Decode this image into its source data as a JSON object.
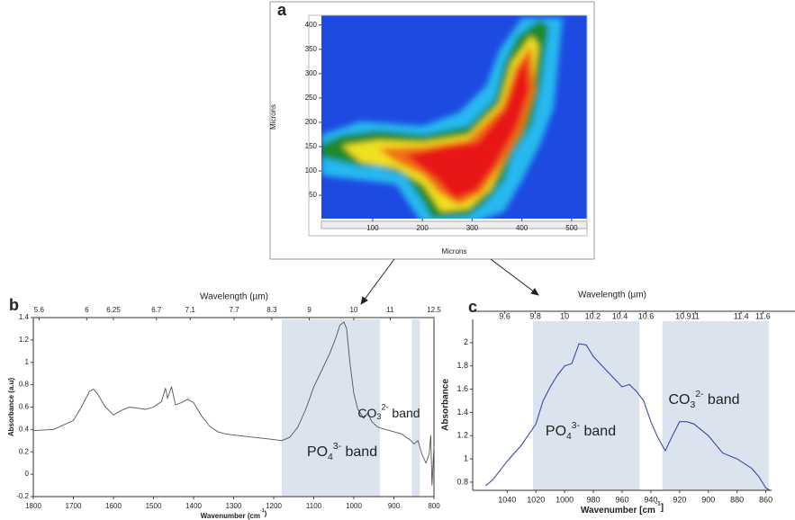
{
  "chart_data": [
    {
      "type": "heatmap",
      "panel_label": "a",
      "xlabel": "Microns",
      "ylabel": "Microns",
      "xlim": [
        -3,
        531
      ],
      "ylim": [
        2,
        420
      ],
      "xticks": [
        100,
        200,
        300,
        400,
        500
      ],
      "yticks": [
        50,
        100,
        150,
        200,
        250,
        300,
        350,
        400
      ]
    },
    {
      "type": "line",
      "panel_label": "b",
      "color": "#555555",
      "xlabel": {
        "text": "Wavenumber (cm",
        "sup": "-1",
        "rest": ")"
      },
      "ylabel": "Absorbance (a.u)",
      "x2label": "Wavelength (µm)",
      "xlim": [
        1800,
        800
      ],
      "ylim": [
        -0.2,
        1.4
      ],
      "xticks": [
        1800,
        1700,
        1600,
        1500,
        1400,
        1300,
        1200,
        1100,
        1000,
        900,
        800
      ],
      "yticks": [
        -0.2,
        0,
        0.2,
        0.4,
        0.6,
        0.8,
        1,
        1.2,
        1.4
      ],
      "x2ticks": [
        5.6,
        6,
        6.25,
        6.7,
        7.1,
        7.7,
        8.3,
        9,
        10,
        11,
        12.5
      ],
      "bands": [
        {
          "xlim": [
            1180,
            935
          ],
          "label": {
            "text": "PO",
            "sub": "4",
            "sup": "3-",
            "rest": " band"
          }
        },
        {
          "xlim": [
            855,
            835
          ],
          "label": {
            "text": "CO",
            "sub": "3",
            "sup": "2-",
            "rest": " band"
          }
        }
      ],
      "x": [
        1800,
        1750,
        1700,
        1680,
        1660,
        1650,
        1640,
        1620,
        1600,
        1580,
        1560,
        1540,
        1520,
        1500,
        1480,
        1470,
        1465,
        1455,
        1445,
        1430,
        1415,
        1400,
        1380,
        1360,
        1340,
        1320,
        1300,
        1250,
        1200,
        1180,
        1160,
        1140,
        1120,
        1100,
        1080,
        1060,
        1045,
        1035,
        1025,
        1018,
        1010,
        1000,
        990,
        975,
        965,
        955,
        940,
        920,
        900,
        880,
        870,
        860,
        850,
        840,
        830,
        820,
        812,
        808,
        805,
        800
      ],
      "values": [
        0.39,
        0.4,
        0.48,
        0.6,
        0.74,
        0.76,
        0.72,
        0.6,
        0.53,
        0.57,
        0.6,
        0.59,
        0.58,
        0.6,
        0.65,
        0.77,
        0.68,
        0.78,
        0.62,
        0.64,
        0.67,
        0.64,
        0.52,
        0.43,
        0.38,
        0.36,
        0.35,
        0.33,
        0.31,
        0.3,
        0.33,
        0.42,
        0.58,
        0.78,
        0.93,
        1.08,
        1.22,
        1.33,
        1.36,
        1.3,
        1.0,
        0.72,
        0.58,
        0.5,
        0.55,
        0.47,
        0.42,
        0.4,
        0.38,
        0.36,
        0.33,
        0.31,
        0.27,
        0.3,
        0.18,
        0.1,
        0.18,
        0.35,
        -0.1,
        0.25
      ]
    },
    {
      "type": "line",
      "panel_label": "c",
      "color": "#3a4aa0",
      "xlabel": {
        "text": "Wavenumber [cm",
        "sup": "-1",
        "rest": "]"
      },
      "ylabel": "Absorbance",
      "x2label": "Wavelength (µm)",
      "xlim": [
        1064,
        856
      ],
      "ylim": [
        0.73,
        2.2
      ],
      "xticks": [
        1040,
        1020,
        1000,
        980,
        960,
        940,
        920,
        900,
        880,
        860
      ],
      "yticks": [
        0.8,
        1,
        1.2,
        1.4,
        1.6,
        1.8,
        2
      ],
      "x2ticks": [
        9.6,
        9.8,
        10,
        10.2,
        10.4,
        10.6,
        10.9,
        11,
        11.4,
        11.6
      ],
      "bands": [
        {
          "xlim": [
            1022,
            948
          ],
          "label": {
            "text": "PO",
            "sub": "4",
            "sup": "3-",
            "rest": " band"
          }
        },
        {
          "xlim": [
            932,
            858
          ],
          "label": {
            "text": "CO",
            "sub": "3",
            "sup": "2-",
            "rest": " band"
          }
        }
      ],
      "x": [
        1055,
        1050,
        1040,
        1030,
        1020,
        1015,
        1010,
        1005,
        1000,
        995,
        990,
        985,
        980,
        970,
        960,
        955,
        950,
        945,
        940,
        935,
        930,
        925,
        920,
        915,
        910,
        900,
        890,
        880,
        870,
        865,
        860,
        857
      ],
      "values": [
        0.77,
        0.82,
        0.98,
        1.12,
        1.3,
        1.5,
        1.62,
        1.72,
        1.8,
        1.82,
        1.99,
        1.98,
        1.88,
        1.75,
        1.62,
        1.64,
        1.58,
        1.5,
        1.32,
        1.18,
        1.07,
        1.2,
        1.32,
        1.32,
        1.3,
        1.2,
        1.05,
        1.0,
        0.92,
        0.85,
        0.75,
        0.73
      ]
    }
  ]
}
